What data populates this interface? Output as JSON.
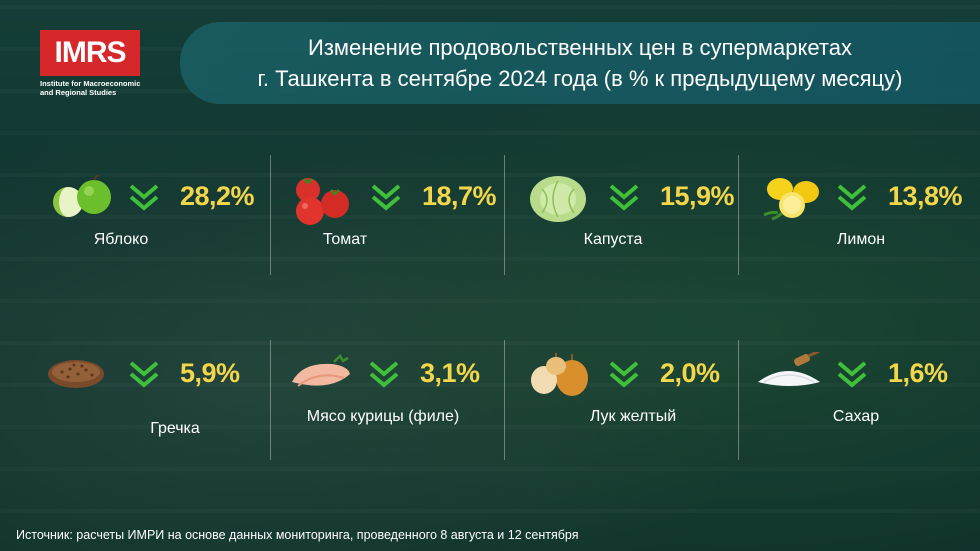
{
  "logo": {
    "text": "IMRS",
    "subtitle": "Institute for Macroeconomic and Regional Studies"
  },
  "title": {
    "line1": "Изменение продовольственных цен в супермаркетах",
    "line2": "г. Ташкента в сентябре 2024 года (в % к предыдущему месяцу)"
  },
  "items": [
    {
      "label": "Яблоко",
      "value": "28,2%",
      "icon": "apple-icon"
    },
    {
      "label": "Томат",
      "value": "18,7%",
      "icon": "tomato-icon"
    },
    {
      "label": "Капуста",
      "value": "15,9%",
      "icon": "cabbage-icon"
    },
    {
      "label": "Лимон",
      "value": "13,8%",
      "icon": "lemon-icon"
    },
    {
      "label": "Гречка",
      "value": "5,9%",
      "icon": "buckwheat-icon"
    },
    {
      "label": "Мясо курицы (филе)",
      "value": "3,1%",
      "icon": "chicken-fillet-icon"
    },
    {
      "label": "Лук желтый",
      "value": "2,0%",
      "icon": "onion-icon"
    },
    {
      "label": "Сахар",
      "value": "1,6%",
      "icon": "sugar-icon"
    }
  ],
  "direction": "down",
  "colors": {
    "value": "#f3d64a",
    "arrow": "#3fbf3a",
    "logo": "#d6272b"
  },
  "source": "Источник: расчеты ИМРИ на основе данных мониторинга, проведенного 8 августа и 12 сентября"
}
